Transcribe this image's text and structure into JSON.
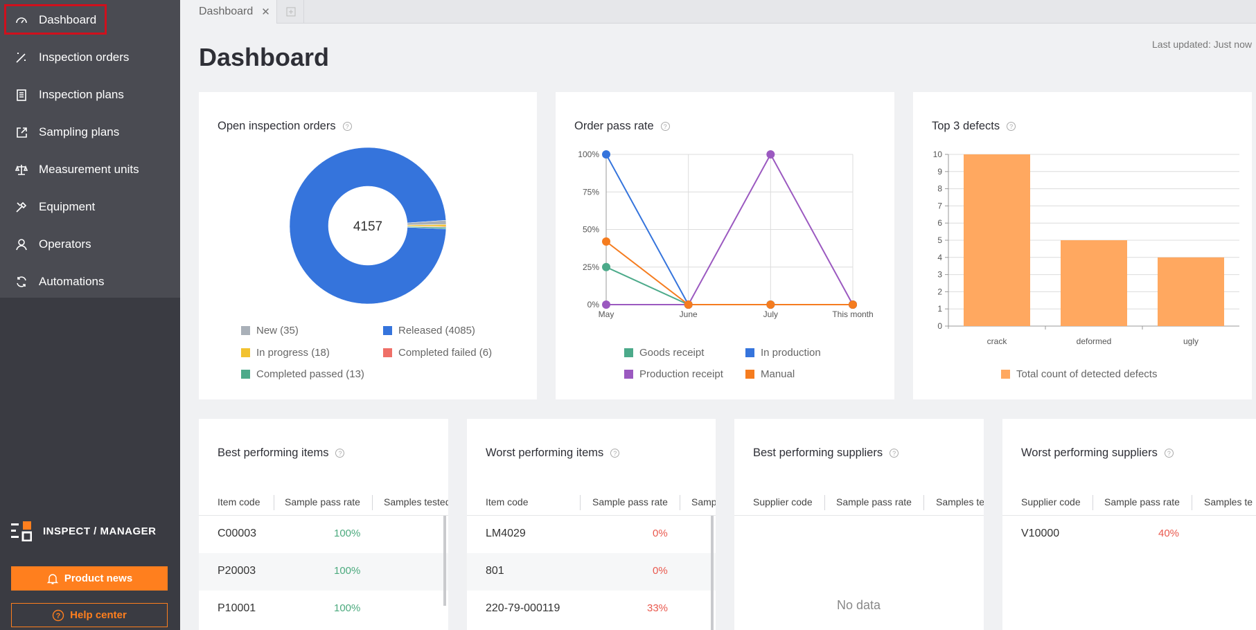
{
  "sidebar": {
    "items": [
      {
        "label": "Dashboard",
        "icon": "gauge-icon"
      },
      {
        "label": "Inspection orders",
        "icon": "wand-icon"
      },
      {
        "label": "Inspection plans",
        "icon": "clipboard-icon"
      },
      {
        "label": "Sampling plans",
        "icon": "export-icon"
      },
      {
        "label": "Measurement units",
        "icon": "scale-icon"
      },
      {
        "label": "Equipment",
        "icon": "tools-icon"
      },
      {
        "label": "Operators",
        "icon": "user-icon"
      },
      {
        "label": "Automations",
        "icon": "refresh-icon"
      }
    ],
    "brand": "INSPECT / MANAGER",
    "product_news": "Product news",
    "help_center": "Help center"
  },
  "tabs": [
    {
      "label": "Dashboard"
    }
  ],
  "header": {
    "title": "Dashboard",
    "last_updated": "Last updated: Just now"
  },
  "colors": {
    "accent": "#ff7f1e",
    "primary": "#3574dc",
    "good": "#4caa7e",
    "bad": "#e9584d"
  },
  "open_orders": {
    "title": "Open inspection orders",
    "total": "4157",
    "legend": [
      {
        "label": "New (35)",
        "color": "#a9b0b8"
      },
      {
        "label": "Released (4085)",
        "color": "#3574dc"
      },
      {
        "label": "In progress (18)",
        "color": "#f2c230"
      },
      {
        "label": "Completed failed (6)",
        "color": "#ef6f68"
      },
      {
        "label": "Completed passed (13)",
        "color": "#4caa8a"
      }
    ]
  },
  "pass_rate": {
    "title": "Order pass rate",
    "legend": [
      {
        "label": "Goods receipt",
        "color": "#4caa8a"
      },
      {
        "label": "In production",
        "color": "#3574dc"
      },
      {
        "label": "Production receipt",
        "color": "#9b59c0"
      },
      {
        "label": "Manual",
        "color": "#f57c1f"
      }
    ]
  },
  "defects": {
    "title": "Top 3 defects",
    "legend": "Total count of detected defects"
  },
  "chart_data": [
    {
      "type": "pie",
      "labels": [
        "New",
        "Released",
        "In progress",
        "Completed failed",
        "Completed passed"
      ],
      "values": [
        35,
        4085,
        18,
        6,
        13
      ],
      "center_label": "4157"
    },
    {
      "type": "line",
      "x": [
        "May",
        "June",
        "July",
        "This month"
      ],
      "yticks": [
        "0%",
        "25%",
        "50%",
        "75%",
        "100%"
      ],
      "ylim": [
        0,
        100
      ],
      "series": [
        {
          "name": "Goods receipt",
          "values": [
            25,
            0,
            0,
            0
          ]
        },
        {
          "name": "In production",
          "values": [
            100,
            0,
            0,
            0
          ]
        },
        {
          "name": "Production receipt",
          "values": [
            0,
            0,
            100,
            0
          ]
        },
        {
          "name": "Manual",
          "values": [
            42,
            0,
            0,
            0
          ]
        }
      ]
    },
    {
      "type": "bar",
      "categories": [
        "crack",
        "deformed",
        "ugly"
      ],
      "series": [
        {
          "name": "Total count of detected defects",
          "values": [
            10,
            5,
            4
          ]
        }
      ],
      "ylim": [
        0,
        10
      ],
      "yticks": [
        "0",
        "1",
        "2",
        "3",
        "4",
        "5",
        "6",
        "7",
        "8",
        "9",
        "10"
      ]
    }
  ],
  "best_items": {
    "title": "Best performing items",
    "columns": [
      "Item code",
      "Sample pass rate",
      "Samples tested"
    ],
    "rows": [
      {
        "code": "C00003",
        "rate": "100%"
      },
      {
        "code": "P20003",
        "rate": "100%"
      },
      {
        "code": "P10001",
        "rate": "100%"
      }
    ]
  },
  "worst_items": {
    "title": "Worst performing items",
    "columns": [
      "Item code",
      "Sample pass rate",
      "Samp"
    ],
    "rows": [
      {
        "code": "LM4029",
        "rate": "0%"
      },
      {
        "code": "801",
        "rate": "0%"
      },
      {
        "code": "220-79-000119",
        "rate": "33%"
      }
    ]
  },
  "best_suppliers": {
    "title": "Best performing suppliers",
    "columns": [
      "Supplier code",
      "Sample pass rate",
      "Samples te"
    ],
    "no_data": "No data"
  },
  "worst_suppliers": {
    "title": "Worst performing suppliers",
    "columns": [
      "Supplier code",
      "Sample pass rate",
      "Samples te"
    ],
    "rows": [
      {
        "code": "V10000",
        "rate": "40%"
      }
    ]
  }
}
